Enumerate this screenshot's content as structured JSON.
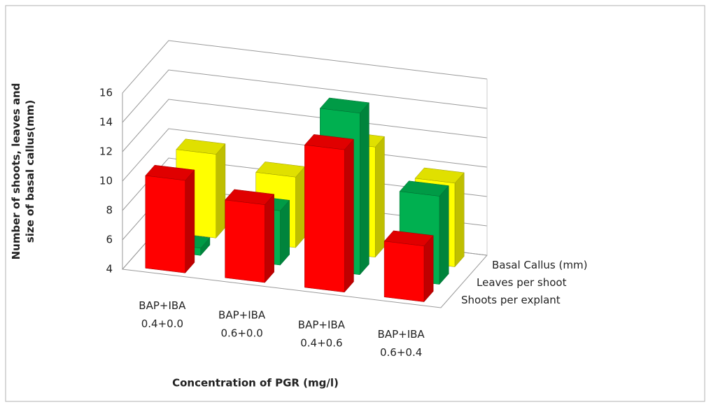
{
  "chart_data": {
    "type": "bar3d",
    "ylabel": [
      "Number of shoots, leaves and",
      "size of basal callus(mm)"
    ],
    "xlabel": "Concentration of PGR (mg/l)",
    "categories": [
      "BAP+IBA 0.4+0.0",
      "BAP+IBA 0.6+0.0",
      "BAP+IBA 0.4+0.6",
      "BAP+IBA 0.6+0.4"
    ],
    "series": [
      {
        "name": "Shoots per explant",
        "color": "#ff0000",
        "values": [
          10.3,
          9.3,
          13.7,
          7.8
        ]
      },
      {
        "name": "Leaves per shoot",
        "color": "#00b050",
        "values": [
          4.5,
          7.7,
          15,
          10
        ]
      },
      {
        "name": "Basal Callus (mm)",
        "color": "#ffff00",
        "values": [
          9.7,
          8.8,
          11.5,
          9.7
        ]
      }
    ],
    "ylim": [
      4,
      16
    ],
    "yticks": [
      4,
      6,
      8,
      10,
      12,
      14,
      16
    ],
    "grid": true
  }
}
